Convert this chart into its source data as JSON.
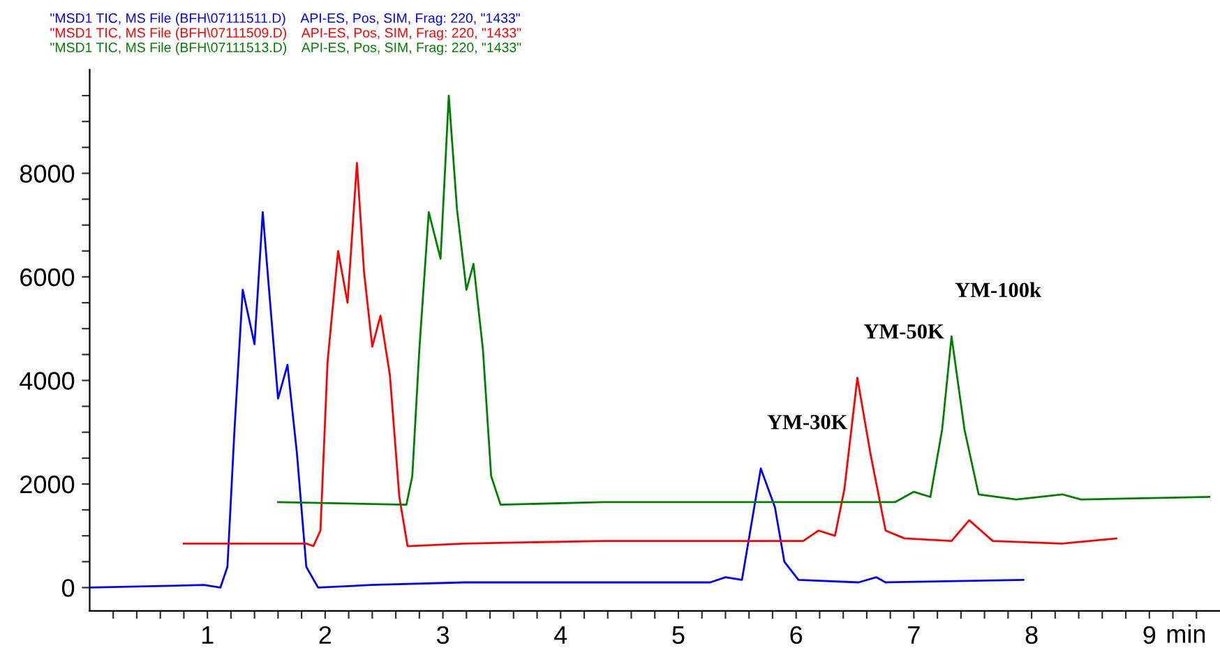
{
  "chart_data": {
    "type": "line",
    "xlabel": "min",
    "xlim": [
      0,
      9.6
    ],
    "ylim": [
      -450,
      10000
    ],
    "xticks": [
      {
        "value": 0.2,
        "label": null
      },
      {
        "value": 0.4,
        "label": null
      },
      {
        "value": 0.6,
        "label": null
      },
      {
        "value": 0.8,
        "label": null
      },
      1,
      {
        "value": 1.2,
        "label": null
      },
      {
        "value": 1.4,
        "label": null
      },
      {
        "value": 1.6,
        "label": null
      },
      {
        "value": 1.8,
        "label": null
      },
      2,
      {
        "value": 2.2,
        "label": null
      },
      {
        "value": 2.4,
        "label": null
      },
      {
        "value": 2.6,
        "label": null
      },
      {
        "value": 2.8,
        "label": null
      },
      3,
      {
        "value": 3.2,
        "label": null
      },
      {
        "value": 3.4,
        "label": null
      },
      {
        "value": 3.6,
        "label": null
      },
      {
        "value": 3.8,
        "label": null
      },
      4,
      {
        "value": 4.2,
        "label": null
      },
      {
        "value": 4.4,
        "label": null
      },
      {
        "value": 4.6,
        "label": null
      },
      {
        "value": 4.8,
        "label": null
      },
      5,
      {
        "value": 5.2,
        "label": null
      },
      {
        "value": 5.4,
        "label": null
      },
      {
        "value": 5.6,
        "label": null
      },
      {
        "value": 5.8,
        "label": null
      },
      6,
      {
        "value": 6.2,
        "label": null
      },
      {
        "value": 6.4,
        "label": null
      },
      {
        "value": 6.6,
        "label": null
      },
      {
        "value": 6.8,
        "label": null
      },
      7,
      {
        "value": 7.2,
        "label": null
      },
      {
        "value": 7.4,
        "label": null
      },
      {
        "value": 7.6,
        "label": null
      },
      {
        "value": 7.8,
        "label": null
      },
      8,
      {
        "value": 8.2,
        "label": null
      },
      {
        "value": 8.4,
        "label": null
      },
      {
        "value": 8.6,
        "label": null
      },
      {
        "value": 8.8,
        "label": null
      },
      9,
      {
        "value": 9.2,
        "label": null
      },
      {
        "value": 9.4,
        "label": null
      }
    ],
    "yticks": [
      0,
      {
        "value": 500,
        "label": null
      },
      {
        "value": 1000,
        "label": null
      },
      {
        "value": 1500,
        "label": null
      },
      2000,
      {
        "value": 2500,
        "label": null
      },
      {
        "value": 3000,
        "label": null
      },
      {
        "value": 3500,
        "label": null
      },
      4000,
      {
        "value": 4500,
        "label": null
      },
      {
        "value": 5000,
        "label": null
      },
      {
        "value": 5500,
        "label": null
      },
      6000,
      {
        "value": 6500,
        "label": null
      },
      {
        "value": 7000,
        "label": null
      },
      {
        "value": 7500,
        "label": null
      },
      8000,
      {
        "value": 8500,
        "label": null
      },
      {
        "value": 9000,
        "label": null
      },
      {
        "value": 9500,
        "label": null
      }
    ],
    "grid": false,
    "legend": "top left",
    "marker": "none",
    "line_style": "solid",
    "series": [
      {
        "name": "\"MSD1 TIC, MS File (BFH\\07111511.D)    API-ES, Pos, SIM, Frag: 220, \"1433\"",
        "color": "#0000ff",
        "x": [
          0,
          0.97,
          1.11,
          1.17,
          1.23,
          1.3,
          1.4,
          1.47,
          1.52,
          1.6,
          1.68,
          1.76,
          1.84,
          1.94,
          2.39,
          3.18,
          4.16,
          4.44,
          5.27,
          5.4,
          5.54,
          5.7,
          5.82,
          5.9,
          6.02,
          6.53,
          6.68,
          6.76,
          7.93
        ],
        "values": [
          0,
          50,
          0,
          400,
          3050,
          5750,
          4700,
          7250,
          5850,
          3650,
          4300,
          2600,
          400,
          0,
          50,
          100,
          100,
          100,
          100,
          200,
          150,
          2300,
          1550,
          500,
          150,
          100,
          200,
          100,
          150
        ]
      },
      {
        "name": "\"MSD1 TIC, MS File (BFH\\07111509.D)    API-ES, Pos, SIM, Frag: 220, \"1433\"",
        "color": "#ff0000",
        "x": [
          0.8,
          1.84,
          1.9,
          1.96,
          2.02,
          2.11,
          2.19,
          2.27,
          2.33,
          2.4,
          2.47,
          2.55,
          2.63,
          2.7,
          3.18,
          4.36,
          6.06,
          6.19,
          6.33,
          6.41,
          6.52,
          6.63,
          6.76,
          6.92,
          7.32,
          7.47,
          7.67,
          8.26,
          8.72
        ],
        "values": [
          850,
          850,
          800,
          1100,
          4350,
          6500,
          5500,
          8200,
          6100,
          4650,
          5250,
          4100,
          1750,
          800,
          850,
          900,
          900,
          1100,
          1000,
          1900,
          4050,
          2600,
          1100,
          950,
          900,
          1300,
          900,
          850,
          950
        ]
      },
      {
        "name": "\"MSD1 TIC, MS File (BFH\\07111513.D)    API-ES, Pos, SIM, Frag: 220, \"1433\"",
        "color": "#008000",
        "x": [
          1.6,
          2.69,
          2.74,
          2.8,
          2.88,
          2.98,
          3.05,
          3.12,
          3.2,
          3.26,
          3.34,
          3.41,
          3.49,
          4.36,
          6.84,
          7.0,
          7.14,
          7.24,
          7.32,
          7.43,
          7.55,
          7.87,
          8.26,
          8.42,
          9.51
        ],
        "values": [
          1650,
          1600,
          2150,
          4600,
          7250,
          6350,
          9500,
          7300,
          5750,
          6250,
          4600,
          2150,
          1600,
          1650,
          1650,
          1850,
          1750,
          3050,
          4850,
          3050,
          1800,
          1700,
          1800,
          1700,
          1750
        ]
      }
    ],
    "annotations": [
      {
        "text": "YM-30K",
        "x": 5.7,
        "y": 2300
      },
      {
        "text": "YM-50K",
        "x": 6.52,
        "y": 4050
      },
      {
        "text": "YM-100k",
        "x": 7.32,
        "y": 4850
      }
    ]
  }
}
